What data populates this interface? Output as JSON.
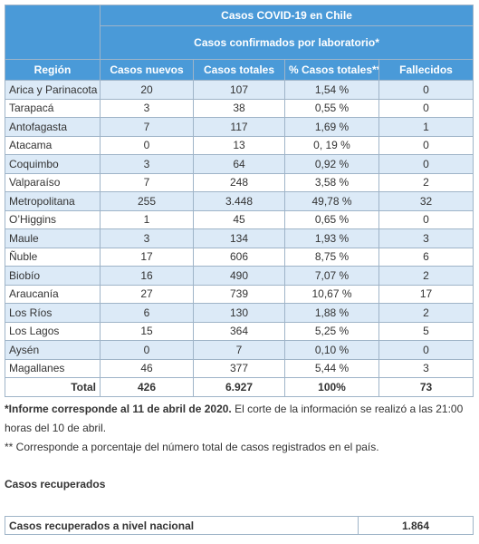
{
  "table": {
    "title": "Casos COVID-19 en Chile",
    "subtitle": "Casos confirmados por laboratorio*",
    "headers": [
      "Región",
      "Casos nuevos",
      "Casos totales",
      "% Casos totales**",
      "Fallecidos"
    ],
    "rows": [
      [
        "Arica y Parinacota",
        "20",
        "107",
        "1,54 %",
        "0"
      ],
      [
        "Tarapacá",
        "3",
        "38",
        "0,55 %",
        "0"
      ],
      [
        "Antofagasta",
        "7",
        "117",
        "1,69 %",
        "1"
      ],
      [
        "Atacama",
        "0",
        "13",
        "0, 19 %",
        "0"
      ],
      [
        "Coquimbo",
        "3",
        "64",
        "0,92 %",
        "0"
      ],
      [
        "Valparaíso",
        "7",
        "248",
        "3,58 %",
        "2"
      ],
      [
        "Metropolitana",
        "255",
        "3.448",
        "49,78 %",
        "32"
      ],
      [
        "O’Higgins",
        "1",
        "45",
        "0,65 %",
        "0"
      ],
      [
        "Maule",
        "3",
        "134",
        "1,93 %",
        "3"
      ],
      [
        "Ñuble",
        "17",
        "606",
        "8,75 %",
        "6"
      ],
      [
        "Biobío",
        "16",
        "490",
        "7,07 %",
        "2"
      ],
      [
        "Araucanía",
        "27",
        "739",
        "10,67 %",
        "17"
      ],
      [
        "Los Ríos",
        "6",
        "130",
        "1,88 %",
        "2"
      ],
      [
        "Los Lagos",
        "15",
        "364",
        "5,25 %",
        "5"
      ],
      [
        "Aysén",
        "0",
        "7",
        "0,10 %",
        "0"
      ],
      [
        "Magallanes",
        "46",
        "377",
        "5,44 %",
        "3"
      ]
    ],
    "total": [
      "Total",
      "426",
      "6.927",
      "100%",
      "73"
    ]
  },
  "notes": [
    {
      "bold": "*Informe corresponde al 11 de abril de 2020.",
      "text": " El corte de la información se realizó a las 21:00 horas del 10 de abril."
    },
    {
      "text": "** Corresponde a porcentaje del número total de casos registrados en el país."
    }
  ],
  "recovered": {
    "heading": "Casos recuperados",
    "label": "Casos recuperados a nivel nacional",
    "value": "1.864"
  }
}
